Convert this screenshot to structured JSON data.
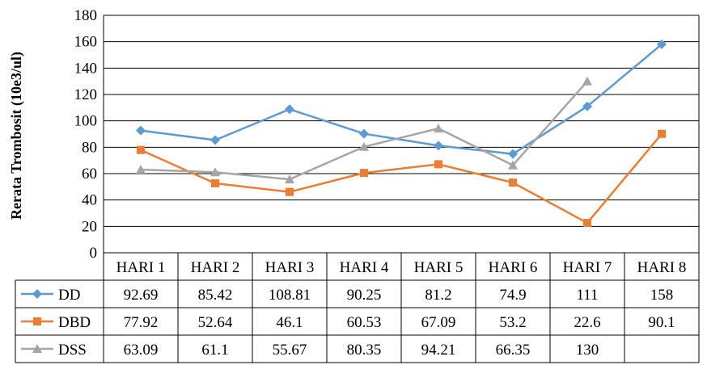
{
  "chart_data": {
    "type": "line",
    "title": "",
    "xlabel": "",
    "ylabel": "Rerata Trombosit  (10e3/ul)",
    "ylim": [
      0,
      180
    ],
    "yticks": [
      0,
      20,
      40,
      60,
      80,
      100,
      120,
      140,
      160,
      180
    ],
    "categories": [
      "HARI 1",
      "HARI 2",
      "HARI 3",
      "HARI 4",
      "HARI 5",
      "HARI 6",
      "HARI 7",
      "HARI 8"
    ],
    "grid": true,
    "legend": "data-table",
    "series": [
      {
        "name": "DD",
        "color": "#5b9bd5",
        "marker": "diamond",
        "values": [
          92.69,
          85.42,
          108.81,
          90.25,
          81.2,
          74.9,
          111,
          158
        ],
        "labels": [
          "92.69",
          "85.42",
          "108.81",
          "90.25",
          "81.2",
          "74.9",
          "111",
          "158"
        ]
      },
      {
        "name": "DBD",
        "color": "#ed7d31",
        "marker": "square",
        "values": [
          77.92,
          52.64,
          46.1,
          60.53,
          67.09,
          53.2,
          22.6,
          90.1
        ],
        "labels": [
          "77.92",
          "52.64",
          "46.1",
          "60.53",
          "67.09",
          "53.2",
          "22.6",
          "90.1"
        ]
      },
      {
        "name": "DSS",
        "color": "#a5a5a5",
        "marker": "triangle",
        "values": [
          63.09,
          61.1,
          55.67,
          80.35,
          94.21,
          66.35,
          130,
          null
        ],
        "labels": [
          "63.09",
          "61.1",
          "55.67",
          "80.35",
          "94.21",
          "66.35",
          "130",
          ""
        ]
      }
    ]
  }
}
